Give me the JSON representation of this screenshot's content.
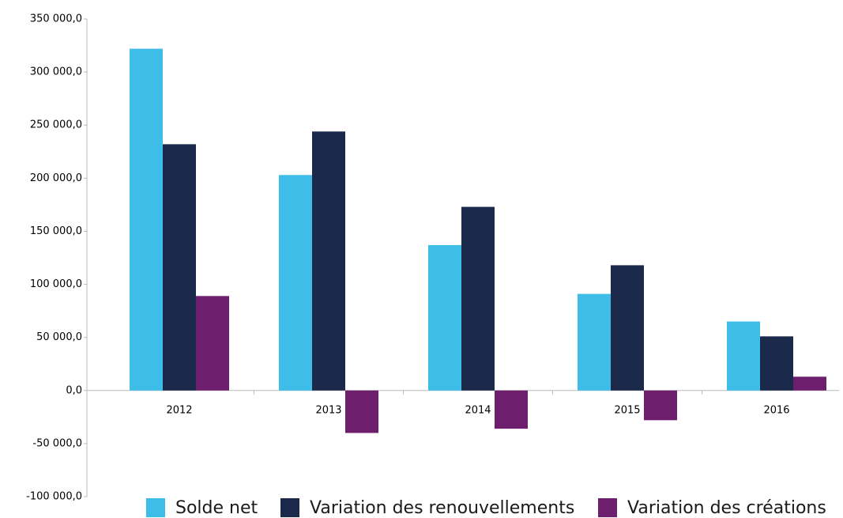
{
  "chart_data": {
    "type": "bar",
    "categories": [
      "2012",
      "2013",
      "2014",
      "2015",
      "2016"
    ],
    "series": [
      {
        "name": "Solde net",
        "color": "#3dbde8",
        "values": [
          322000,
          203000,
          137000,
          91000,
          65000
        ]
      },
      {
        "name": "Variation des renouvellements",
        "color": "#1b2a4a",
        "values": [
          232000,
          244000,
          173000,
          118000,
          51000
        ]
      },
      {
        "name": "Variation des créations",
        "color": "#6d1f6e",
        "values": [
          89000,
          -40000,
          -36000,
          -28000,
          13000
        ]
      }
    ],
    "ylim": [
      -100000,
      350000
    ],
    "yticks": [
      {
        "value": -100000,
        "label": "-100 000,0"
      },
      {
        "value": -50000,
        "label": "-50 000,0"
      },
      {
        "value": 0,
        "label": "0,0"
      },
      {
        "value": 50000,
        "label": "50 000,0"
      },
      {
        "value": 100000,
        "label": "100 000,0"
      },
      {
        "value": 150000,
        "label": "150 000,0"
      },
      {
        "value": 200000,
        "label": "200 000,0"
      },
      {
        "value": 250000,
        "label": "250 000,0"
      },
      {
        "value": 300000,
        "label": "300 000,0"
      },
      {
        "value": 350000,
        "label": "350 000,0"
      }
    ],
    "grid": false,
    "legend": "bottom"
  }
}
